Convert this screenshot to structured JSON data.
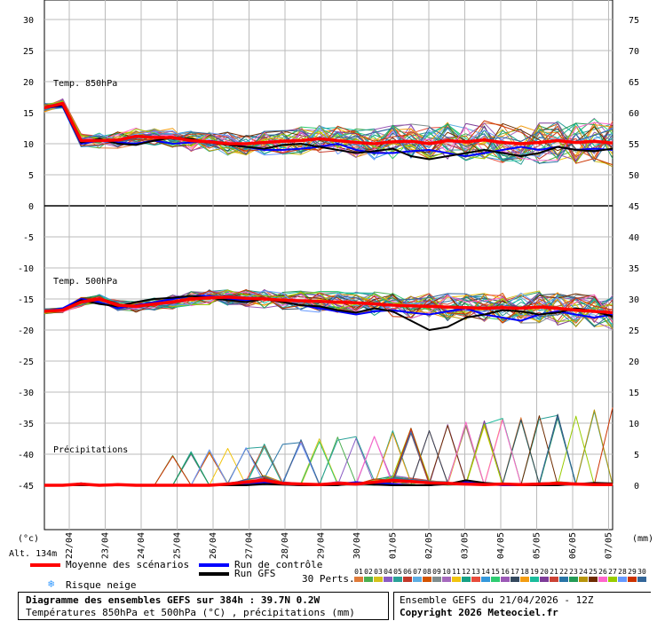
{
  "chart_data": {
    "type": "line",
    "dates": [
      "22/04",
      "23/04",
      "24/04",
      "25/04",
      "26/04",
      "27/04",
      "28/04",
      "29/04",
      "30/04",
      "01/05",
      "02/05",
      "03/05",
      "04/05",
      "05/05",
      "06/05",
      "07/05"
    ],
    "left_axis_ticks": [
      30,
      25,
      20,
      15,
      10,
      5,
      0,
      -5,
      -10,
      -15,
      -20,
      -25,
      -30,
      -35,
      -40,
      -45
    ],
    "right_axis_ticks": [
      75,
      70,
      65,
      60,
      55,
      50,
      45,
      40,
      35,
      30,
      25,
      20,
      15,
      10,
      5,
      0
    ],
    "left_unit": "(°c)",
    "right_unit": "(mm)",
    "altitude": "Alt. 134m",
    "panels": [
      {
        "label": "Temp. 850hPa",
        "ylim": [
          0,
          30
        ],
        "start": 15.8,
        "mean_profile_hint": "plateau"
      },
      {
        "label": "Temp. 500hPa",
        "ylim": [
          -25,
          -10
        ],
        "start": -17
      },
      {
        "label": "Précipitations",
        "ylim": [
          0,
          15
        ]
      }
    ],
    "series": [
      {
        "name": "Moyenne des scénarios",
        "color": "#ff0000",
        "t850": [
          15.8,
          16.5,
          10.5,
          10.5,
          10.6,
          11.2,
          11.0,
          11.0,
          10.5,
          10.3,
          10.0,
          10.0,
          10.2,
          10.4,
          10.5,
          10.8,
          10.5,
          10.2,
          10.0,
          10.3,
          10.4,
          10.0,
          10.5,
          10.3,
          10.6,
          10.2,
          10.0,
          10.2,
          10.5,
          10.2,
          10.4,
          10.1
        ],
        "t500": [
          -17,
          -16.8,
          -15.5,
          -15.0,
          -16.0,
          -16.2,
          -15.8,
          -15.5,
          -15.0,
          -14.8,
          -14.7,
          -14.9,
          -15.0,
          -15.2,
          -15.3,
          -15.4,
          -15.5,
          -15.6,
          -15.8,
          -16.0,
          -16.1,
          -16.2,
          -16.3,
          -16.4,
          -16.5,
          -16.4,
          -16.5,
          -16.3,
          -16.5,
          -16.8,
          -17.0,
          -17.2
        ],
        "precip": [
          0,
          0,
          0.2,
          0,
          0.1,
          0,
          0,
          0,
          0,
          0,
          0.2,
          0.5,
          0.8,
          0.3,
          0.2,
          0.1,
          0.3,
          0.2,
          0.5,
          0.8,
          0.6,
          0.4,
          0.3,
          0.2,
          0.1,
          0.2,
          0.1,
          0.2,
          0.3,
          0.2,
          0.1,
          0.1
        ]
      },
      {
        "name": "Run de contrôle",
        "color": "#0000ff",
        "t850": [
          15.8,
          16.0,
          10.0,
          10.5,
          10.2,
          10.0,
          10.5,
          10.0,
          10.2,
          10.5,
          10.0,
          9.5,
          9.0,
          9.0,
          9.2,
          9.5,
          10.0,
          9.0,
          8.5,
          8.5,
          8.8,
          9.0,
          8.5,
          8.0,
          8.5,
          9.0,
          9.5,
          9.0,
          9.5,
          9.0,
          9.2,
          9.0
        ],
        "t500": [
          -17,
          -16.5,
          -15.0,
          -15.5,
          -16.5,
          -16.0,
          -15.5,
          -15.0,
          -14.5,
          -14.5,
          -15.0,
          -15.2,
          -15.0,
          -15.5,
          -16.0,
          -16.5,
          -17.0,
          -17.5,
          -17.0,
          -16.8,
          -17.2,
          -17.5,
          -17.0,
          -16.5,
          -17.5,
          -18.0,
          -18.5,
          -17.5,
          -17.0,
          -17.5,
          -18.0,
          -17.5
        ],
        "precip": [
          0,
          0,
          0,
          0,
          0,
          0,
          0,
          0,
          0,
          0,
          0,
          0.3,
          0.5,
          0.2,
          0,
          0,
          0.2,
          0.5,
          0.3,
          0.2,
          0,
          0,
          0.3,
          0.5,
          0.2,
          0,
          0,
          0,
          0.2,
          0.3,
          0.1,
          0
        ]
      },
      {
        "name": "Run GFS",
        "color": "#000000",
        "t850": [
          15.8,
          16.2,
          10.2,
          10.8,
          10.0,
          9.8,
          10.5,
          11.0,
          10.8,
          10.2,
          9.8,
          9.5,
          9.2,
          9.8,
          10.0,
          9.5,
          9.0,
          8.5,
          8.8,
          9.2,
          8.0,
          7.5,
          8.0,
          8.5,
          9.0,
          8.5,
          8.0,
          8.5,
          9.5,
          9.0,
          8.8,
          9.2
        ],
        "t500": [
          -17,
          -16.8,
          -15.2,
          -15.8,
          -16.2,
          -15.5,
          -15.0,
          -14.8,
          -14.5,
          -14.8,
          -15.2,
          -15.5,
          -15.0,
          -15.5,
          -16.0,
          -16.2,
          -16.8,
          -17.2,
          -16.5,
          -17.0,
          -18.5,
          -20.0,
          -19.5,
          -18.0,
          -17.5,
          -16.8,
          -17.0,
          -17.5,
          -17.2,
          -16.5,
          -17.0,
          -17.8
        ],
        "precip": [
          0,
          0,
          0,
          0,
          0,
          0,
          0,
          0,
          0,
          0,
          0,
          0,
          0.2,
          0.1,
          0,
          0,
          0,
          0.3,
          0.1,
          0,
          0,
          0,
          0.2,
          0.8,
          0.4,
          0.2,
          0,
          0,
          0,
          0.2,
          0.4,
          0.3
        ]
      }
    ],
    "members_count": 30,
    "member_palette": [
      "#e07b39",
      "#4caf50",
      "#d4c21a",
      "#8a5cc4",
      "#2aa198",
      "#c0392b",
      "#5dade2",
      "#d35400",
      "#7f8c8d",
      "#a569bd",
      "#f1c40f",
      "#16a085",
      "#e74c3c",
      "#3498db",
      "#2ecc71",
      "#9b59b6",
      "#34495e",
      "#f39c12",
      "#1abc9c",
      "#7d3c98",
      "#cb4335",
      "#2874a6",
      "#239b56",
      "#b7950b",
      "#6e2c00",
      "#ff66cc",
      "#99cc00",
      "#6699ff",
      "#cc3300",
      "#336699"
    ]
  },
  "legend": {
    "mean": "Moyenne des scénarios",
    "control": "Run de contrôle",
    "gfs": "Run GFS",
    "snow": "Risque neige",
    "perts": "30 Perts.",
    "member_numbers": [
      "01",
      "02",
      "03",
      "04",
      "05",
      "06",
      "07",
      "08",
      "09",
      "10",
      "11",
      "12",
      "13",
      "14",
      "15",
      "16",
      "17",
      "18",
      "19",
      "20",
      "21",
      "22",
      "23",
      "24",
      "25",
      "26",
      "27",
      "28",
      "29",
      "30"
    ]
  },
  "footer": {
    "title": "Diagramme des ensembles GEFS sur 384h : 39.7N 0.2W",
    "subtitle": "Températures 850hPa et 500hPa (°C) , précipitations (mm)",
    "run": "Ensemble GEFS du 21/04/2026 - 12Z",
    "copyright": "Copyright 2026 Meteociel.fr"
  }
}
